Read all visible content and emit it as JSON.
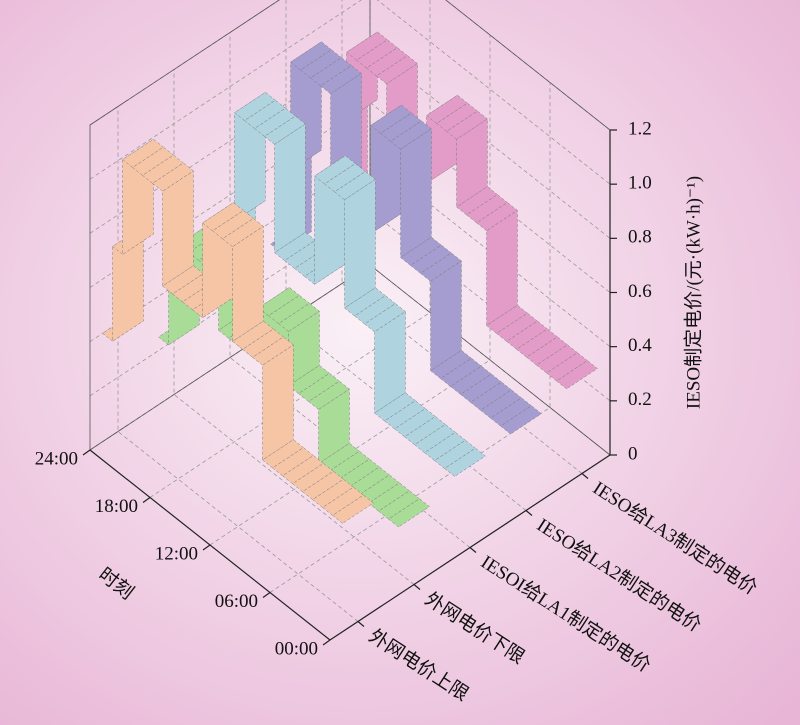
{
  "chart_data": {
    "type": "ribbon3d",
    "x": [
      0,
      1,
      2,
      3,
      4,
      5,
      6,
      7,
      8,
      9,
      10,
      11,
      12,
      13,
      14,
      15,
      16,
      17,
      18,
      19,
      20,
      21,
      22,
      23
    ],
    "xlim": [
      0,
      24
    ],
    "xticks": [
      {
        "value": 0,
        "label": "00:00"
      },
      {
        "value": 6,
        "label": "06:00"
      },
      {
        "value": 12,
        "label": "12:00"
      },
      {
        "value": 18,
        "label": "18:00"
      },
      {
        "value": 24,
        "label": "24:00"
      }
    ],
    "xlabel": "时刻",
    "zlim": [
      0,
      1.2
    ],
    "zticks": [
      0,
      0.2,
      0.4,
      0.6,
      0.8,
      {
        "value": 1.0,
        "label": "1.0"
      },
      1.2
    ],
    "zlabel": "IESO制定电价/(元·(kW·h)⁻¹)",
    "grid": true,
    "series": [
      {
        "name": "外网电价上限",
        "color": "#f5c5a6",
        "values": [
          0.4,
          0.4,
          0.4,
          0.4,
          0.4,
          0.4,
          0.4,
          0.4,
          0.75,
          0.75,
          0.75,
          1.1,
          1.1,
          1.1,
          0.75,
          0.75,
          0.75,
          0.75,
          1.1,
          1.1,
          1.1,
          1.1,
          0.75,
          0.4
        ]
      },
      {
        "name": "外网电价下限",
        "color": "#a9dc97",
        "values": [
          0.25,
          0.25,
          0.25,
          0.25,
          0.25,
          0.25,
          0.25,
          0.25,
          0.45,
          0.45,
          0.45,
          0.65,
          0.65,
          0.65,
          0.45,
          0.45,
          0.45,
          0.45,
          0.65,
          0.65,
          0.65,
          0.65,
          0.45,
          0.25
        ]
      },
      {
        "name": "IESOI给LA1制定的电价",
        "color": "#afd3df",
        "values": [
          0.3,
          0.3,
          0.3,
          0.3,
          0.3,
          0.3,
          0.3,
          0.3,
          0.6,
          0.6,
          0.6,
          1.0,
          1.0,
          1.0,
          0.6,
          0.6,
          0.6,
          0.6,
          1.0,
          1.0,
          1.0,
          1.0,
          0.6,
          0.3
        ]
      },
      {
        "name": "IESO给LA2制定的电价",
        "color": "#a59cd0",
        "values": [
          0.32,
          0.32,
          0.32,
          0.32,
          0.32,
          0.32,
          0.32,
          0.32,
          0.65,
          0.65,
          0.65,
          1.05,
          1.05,
          1.05,
          0.65,
          0.65,
          0.65,
          0.65,
          1.05,
          1.05,
          1.05,
          1.05,
          0.65,
          0.32
        ]
      },
      {
        "name": "IESO给LA3制定的电价",
        "color": "#e39bc7",
        "values": [
          0.35,
          0.35,
          0.35,
          0.35,
          0.35,
          0.35,
          0.35,
          0.35,
          0.7,
          0.7,
          0.7,
          0.95,
          0.95,
          0.95,
          0.7,
          0.7,
          0.7,
          0.7,
          0.95,
          0.95,
          0.95,
          0.95,
          0.7,
          0.35
        ]
      }
    ]
  }
}
